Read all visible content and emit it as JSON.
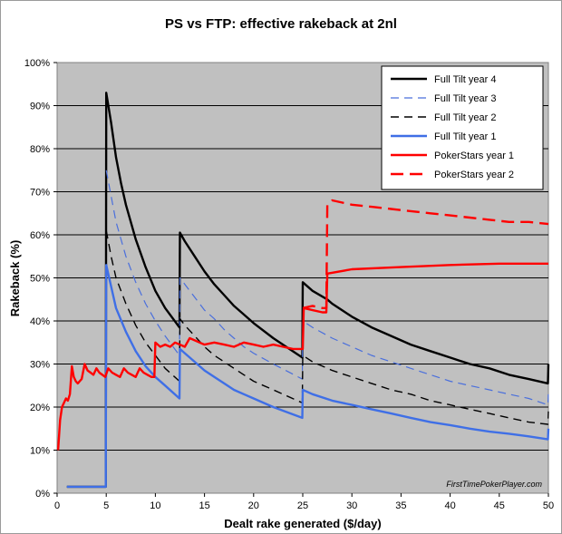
{
  "chart_data": {
    "type": "line",
    "title": "PS vs FTP: effective rakeback at 2nl",
    "xlabel": "Dealt rake generated ($/day)",
    "ylabel": "Rakeback (%)",
    "xlim": [
      0,
      50
    ],
    "ylim": [
      0,
      100
    ],
    "x_ticks": [
      0,
      5,
      10,
      15,
      20,
      25,
      30,
      35,
      40,
      45,
      50
    ],
    "y_ticks": [
      0,
      10,
      20,
      30,
      40,
      50,
      60,
      70,
      80,
      90,
      100
    ],
    "y_tick_suffix": "%",
    "grid": "horizontal",
    "legend_position": "top-right",
    "plot_background": "#c0c0c0",
    "watermark": "FirstTimePokerPlayer.com",
    "series": [
      {
        "name": "Full Tilt year 4",
        "color": "#000000",
        "style": "solid",
        "width": 2.4,
        "points": [
          [
            1,
            1.5
          ],
          [
            4.95,
            1.5
          ],
          [
            5,
            93
          ],
          [
            5.5,
            86
          ],
          [
            6,
            78
          ],
          [
            6.5,
            72
          ],
          [
            7,
            67
          ],
          [
            8,
            59
          ],
          [
            9,
            52.5
          ],
          [
            10,
            47
          ],
          [
            11,
            43
          ],
          [
            12.45,
            38.5
          ],
          [
            12.5,
            60.5
          ],
          [
            13,
            58.5
          ],
          [
            14,
            55
          ],
          [
            15,
            51.5
          ],
          [
            16,
            48.5
          ],
          [
            17,
            46
          ],
          [
            18,
            43.5
          ],
          [
            19,
            41.5
          ],
          [
            20,
            39.5
          ],
          [
            22,
            36
          ],
          [
            24.95,
            31.5
          ],
          [
            25,
            49
          ],
          [
            26,
            47
          ],
          [
            27.5,
            45
          ],
          [
            28,
            44
          ],
          [
            30,
            41
          ],
          [
            32,
            38.5
          ],
          [
            34,
            36.5
          ],
          [
            36,
            34.5
          ],
          [
            38,
            33
          ],
          [
            40,
            31.5
          ],
          [
            42,
            30
          ],
          [
            44,
            29
          ],
          [
            46,
            27.5
          ],
          [
            48,
            26.5
          ],
          [
            49.95,
            25.5
          ],
          [
            50,
            30
          ]
        ]
      },
      {
        "name": "Full Tilt year 3",
        "color": "#4a6fdc",
        "style": "dashed",
        "width": 1.2,
        "points": [
          [
            5,
            75
          ],
          [
            5.5,
            69
          ],
          [
            6,
            63
          ],
          [
            7,
            55
          ],
          [
            8,
            49
          ],
          [
            9,
            44
          ],
          [
            10,
            40
          ],
          [
            11,
            36.5
          ],
          [
            12.45,
            32
          ],
          [
            12.5,
            50
          ],
          [
            13,
            48.5
          ],
          [
            14,
            45.5
          ],
          [
            15,
            42.5
          ],
          [
            16,
            40.5
          ],
          [
            17,
            38
          ],
          [
            18,
            36
          ],
          [
            19,
            34
          ],
          [
            20,
            32.5
          ],
          [
            22,
            30
          ],
          [
            24.95,
            26.5
          ],
          [
            25,
            40
          ],
          [
            26,
            38.5
          ],
          [
            28,
            36
          ],
          [
            30,
            34
          ],
          [
            32,
            32
          ],
          [
            34,
            30.5
          ],
          [
            36,
            29
          ],
          [
            38,
            27.5
          ],
          [
            40,
            26
          ],
          [
            42,
            25
          ],
          [
            44,
            24
          ],
          [
            46,
            23
          ],
          [
            48,
            22
          ],
          [
            49.95,
            20.5
          ],
          [
            50,
            24
          ]
        ]
      },
      {
        "name": "Full Tilt year 2",
        "color": "#000000",
        "style": "dashed",
        "width": 1.4,
        "points": [
          [
            5,
            61
          ],
          [
            5.5,
            55
          ],
          [
            6,
            50
          ],
          [
            7,
            44
          ],
          [
            8,
            39
          ],
          [
            9,
            35
          ],
          [
            10,
            32
          ],
          [
            11,
            29
          ],
          [
            12.45,
            26
          ],
          [
            12.5,
            40.5
          ],
          [
            13,
            39
          ],
          [
            14,
            36.5
          ],
          [
            15,
            34
          ],
          [
            16,
            32
          ],
          [
            17,
            30.5
          ],
          [
            18,
            29
          ],
          [
            19,
            27.5
          ],
          [
            20,
            26
          ],
          [
            22,
            24
          ],
          [
            24.95,
            21
          ],
          [
            25,
            32
          ],
          [
            26,
            30.5
          ],
          [
            28,
            28.5
          ],
          [
            30,
            27
          ],
          [
            32,
            25.5
          ],
          [
            34,
            24
          ],
          [
            36,
            23
          ],
          [
            38,
            21.5
          ],
          [
            40,
            20.5
          ],
          [
            42,
            19.5
          ],
          [
            44,
            18.5
          ],
          [
            46,
            17.5
          ],
          [
            48,
            16.5
          ],
          [
            49.95,
            16
          ],
          [
            50,
            19
          ]
        ]
      },
      {
        "name": "Full Tilt year 1",
        "color": "#3f6fe6",
        "style": "solid",
        "width": 2.4,
        "points": [
          [
            1,
            1.5
          ],
          [
            4.95,
            1.5
          ],
          [
            5,
            53
          ],
          [
            5.5,
            48
          ],
          [
            6,
            43
          ],
          [
            7,
            37.5
          ],
          [
            8,
            33
          ],
          [
            9,
            29.5
          ],
          [
            10,
            27
          ],
          [
            11,
            25
          ],
          [
            12.45,
            22
          ],
          [
            12.5,
            33.5
          ],
          [
            13,
            32.5
          ],
          [
            14,
            30.5
          ],
          [
            15,
            28.5
          ],
          [
            16,
            27
          ],
          [
            17,
            25.5
          ],
          [
            18,
            24
          ],
          [
            19,
            23
          ],
          [
            20,
            22
          ],
          [
            22,
            20
          ],
          [
            24.95,
            17.5
          ],
          [
            25,
            24
          ],
          [
            26,
            23
          ],
          [
            28,
            21.5
          ],
          [
            30,
            20.5
          ],
          [
            32,
            19.5
          ],
          [
            34,
            18.5
          ],
          [
            36,
            17.5
          ],
          [
            38,
            16.5
          ],
          [
            40,
            15.8
          ],
          [
            42,
            15
          ],
          [
            44,
            14.3
          ],
          [
            46,
            13.8
          ],
          [
            48,
            13.2
          ],
          [
            49.95,
            12.5
          ],
          [
            50,
            15
          ]
        ]
      },
      {
        "name": "PokerStars year 1",
        "color": "#ff0000",
        "style": "solid",
        "width": 2.4,
        "points": [
          [
            0.1,
            10
          ],
          [
            0.3,
            17
          ],
          [
            0.5,
            20
          ],
          [
            0.7,
            21
          ],
          [
            0.9,
            22
          ],
          [
            1.1,
            21.5
          ],
          [
            1.3,
            23
          ],
          [
            1.5,
            29.5
          ],
          [
            1.7,
            27
          ],
          [
            1.9,
            26
          ],
          [
            2.1,
            25.5
          ],
          [
            2.3,
            26
          ],
          [
            2.5,
            26.5
          ],
          [
            2.8,
            30
          ],
          [
            3.1,
            28.5
          ],
          [
            3.4,
            28
          ],
          [
            3.7,
            27.5
          ],
          [
            4,
            29
          ],
          [
            4.3,
            28
          ],
          [
            4.6,
            27.5
          ],
          [
            4.9,
            27
          ],
          [
            5.2,
            29
          ],
          [
            5.6,
            28
          ],
          [
            6,
            27.5
          ],
          [
            6.4,
            27
          ],
          [
            6.8,
            29
          ],
          [
            7.2,
            28
          ],
          [
            7.6,
            27.5
          ],
          [
            8,
            27
          ],
          [
            8.4,
            29
          ],
          [
            8.8,
            28
          ],
          [
            9.2,
            27.5
          ],
          [
            9.6,
            27
          ],
          [
            9.9,
            27
          ],
          [
            10,
            35
          ],
          [
            10.5,
            34
          ],
          [
            11,
            34.5
          ],
          [
            11.5,
            34
          ],
          [
            12,
            35
          ],
          [
            12.5,
            34.5
          ],
          [
            13,
            34
          ],
          [
            13.5,
            36
          ],
          [
            14,
            35.5
          ],
          [
            14.5,
            35
          ],
          [
            15,
            34.5
          ],
          [
            16,
            35
          ],
          [
            17,
            34.5
          ],
          [
            18,
            34
          ],
          [
            19,
            35
          ],
          [
            20,
            34.5
          ],
          [
            21,
            34
          ],
          [
            22,
            34.5
          ],
          [
            23,
            34
          ],
          [
            24,
            33.5
          ],
          [
            25,
            33.5
          ],
          [
            25.1,
            43
          ],
          [
            26,
            42.5
          ],
          [
            27,
            42
          ],
          [
            27.4,
            42
          ],
          [
            27.5,
            51
          ],
          [
            30,
            52
          ],
          [
            35,
            52.5
          ],
          [
            40,
            53
          ],
          [
            45,
            53.3
          ],
          [
            50,
            53.3
          ]
        ]
      },
      {
        "name": "PokerStars year 2",
        "color": "#ff0000",
        "style": "dashed",
        "width": 2.4,
        "points": [
          [
            25,
            43
          ],
          [
            26,
            43.5
          ],
          [
            27,
            43
          ],
          [
            27.4,
            43
          ],
          [
            27.5,
            67
          ],
          [
            28,
            68
          ],
          [
            30,
            67
          ],
          [
            32,
            66.5
          ],
          [
            34,
            66
          ],
          [
            36,
            65.5
          ],
          [
            38,
            65
          ],
          [
            40,
            64.5
          ],
          [
            42,
            64
          ],
          [
            44,
            63.5
          ],
          [
            46,
            63
          ],
          [
            48,
            63
          ],
          [
            50,
            62.5
          ]
        ]
      }
    ]
  }
}
